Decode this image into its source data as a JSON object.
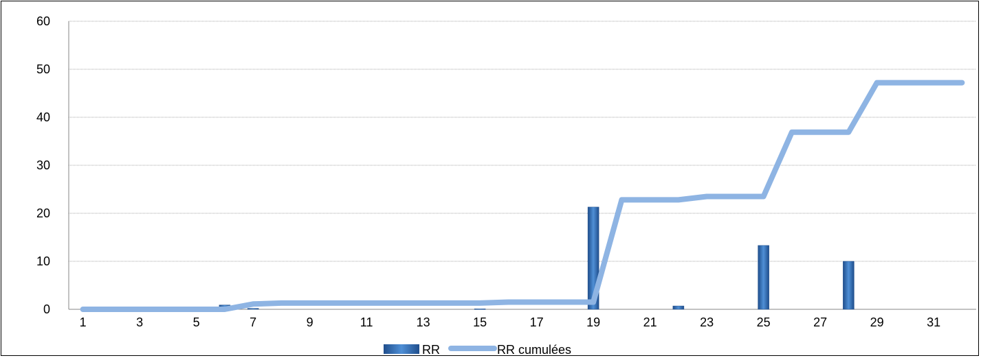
{
  "chart_data": {
    "type": "bar",
    "title": "",
    "xlabel": "",
    "ylabel": "",
    "ylim": [
      0,
      60
    ],
    "yticks": [
      "0",
      "10",
      "20",
      "30",
      "40",
      "50",
      "60"
    ],
    "x": [
      1,
      2,
      3,
      4,
      5,
      6,
      7,
      8,
      9,
      10,
      11,
      12,
      13,
      14,
      15,
      16,
      17,
      18,
      19,
      20,
      21,
      22,
      23,
      24,
      25,
      26,
      27,
      28,
      29,
      30,
      31,
      32
    ],
    "xtick_labels": [
      "1",
      "3",
      "5",
      "7",
      "9",
      "11",
      "13",
      "15",
      "17",
      "19",
      "21",
      "23",
      "25",
      "27",
      "29",
      "31"
    ],
    "grid": true,
    "legend_position": "bottom",
    "series": [
      {
        "name": "RR",
        "type": "bar",
        "color": "#2e64a8",
        "values": [
          0,
          0,
          0,
          0,
          0,
          0.9,
          0.2,
          0,
          0,
          0,
          0,
          0,
          0,
          0,
          0.1,
          0,
          0,
          0,
          21.3,
          0,
          0,
          0.7,
          0,
          0,
          13.3,
          0,
          0,
          10.0,
          0,
          0,
          0,
          0
        ]
      },
      {
        "name": "RR cumulées",
        "type": "line",
        "color": "#8eb4e3",
        "values": [
          0,
          0,
          0,
          0,
          0,
          0,
          1.1,
          1.3,
          1.3,
          1.3,
          1.3,
          1.3,
          1.3,
          1.3,
          1.3,
          1.5,
          1.5,
          1.5,
          1.5,
          22.8,
          22.8,
          22.8,
          23.5,
          23.5,
          23.5,
          36.9,
          36.9,
          36.9,
          47.2,
          47.2,
          47.2,
          47.2
        ]
      }
    ]
  }
}
